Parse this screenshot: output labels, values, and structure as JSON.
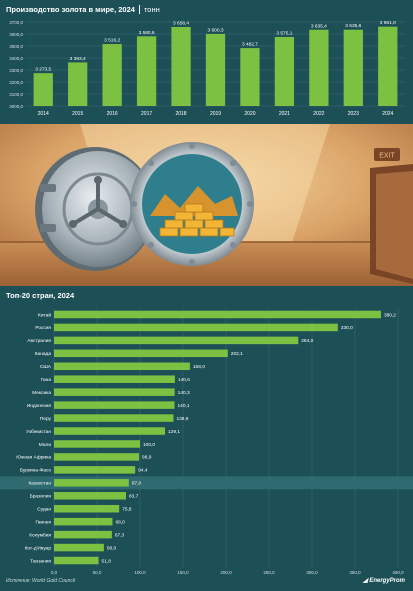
{
  "top_chart": {
    "title": "Производство золота в мире, 2024",
    "unit": "тонн",
    "chart_data": {
      "type": "bar",
      "categories": [
        "2014",
        "2015",
        "2016",
        "2017",
        "2018",
        "2019",
        "2020",
        "2021",
        "2022",
        "2023",
        "2024"
      ],
      "values": [
        3273.5,
        3363.4,
        3516.2,
        3580.6,
        3658.4,
        3600.3,
        3482.7,
        3575.1,
        3635.4,
        3635.6,
        3661.0
      ],
      "value_labels": [
        "3 273,5",
        "3 363,4",
        "3 516,2",
        "3 580,6",
        "3 658,4",
        "3 600,3",
        "3 482,7",
        "3 575,1",
        "3 635,4",
        "3 635,6",
        "3 661,0"
      ],
      "ylim": [
        3000,
        3700
      ],
      "yticks": [
        3000,
        3100,
        3200,
        3300,
        3400,
        3500,
        3600,
        3700
      ],
      "ytick_labels": [
        "3000,0",
        "3100,0",
        "3200,0",
        "3300,0",
        "3400,0",
        "3500,0",
        "3600,0",
        "3700,0"
      ],
      "grid": true,
      "bar_color": "#7cc142"
    }
  },
  "scene": {
    "exit_sign": "EXIT"
  },
  "bottom_chart": {
    "title": "Топ-20 стран, 2024",
    "chart_data": {
      "type": "bar",
      "orientation": "horizontal",
      "categories": [
        "Китай",
        "Россия",
        "Австралия",
        "Канада",
        "США",
        "Гана",
        "Мексика",
        "Индонезия",
        "Перу",
        "Узбекистан",
        "Мали",
        "Южная Африка",
        "Буркина-Фасо",
        "Казахстан",
        "Бразилия",
        "Судан",
        "Гвинея",
        "Колумбия",
        "Кот-д'Ивуар",
        "Танзания"
      ],
      "values": [
        380.2,
        330.0,
        284.0,
        202.1,
        158.0,
        140.6,
        140.3,
        140.1,
        138.9,
        129.1,
        100.0,
        98.9,
        94.4,
        87.0,
        83.7,
        75.8,
        68.0,
        67.3,
        58.0,
        51.8
      ],
      "value_labels": [
        "380,2",
        "330,0",
        "284,0",
        "202,1",
        "158,0",
        "140,6",
        "140,3",
        "140,1",
        "138,9",
        "129,1",
        "100,0",
        "98,9",
        "94,4",
        "87,0",
        "83,7",
        "75,8",
        "68,0",
        "67,3",
        "58,0",
        "51,8"
      ],
      "highlight": "Казахстан",
      "xlim": [
        0,
        400
      ],
      "xticks": [
        0,
        50,
        100,
        150,
        200,
        250,
        300,
        350,
        400
      ],
      "xtick_labels": [
        "0,0",
        "50,0",
        "100,0",
        "150,0",
        "200,0",
        "250,0",
        "300,0",
        "350,0",
        "400,0"
      ],
      "grid": true,
      "bar_color": "#7cc142"
    }
  },
  "footer": {
    "source": "Источник: World Gold Council",
    "logo": "EnergyProm"
  }
}
